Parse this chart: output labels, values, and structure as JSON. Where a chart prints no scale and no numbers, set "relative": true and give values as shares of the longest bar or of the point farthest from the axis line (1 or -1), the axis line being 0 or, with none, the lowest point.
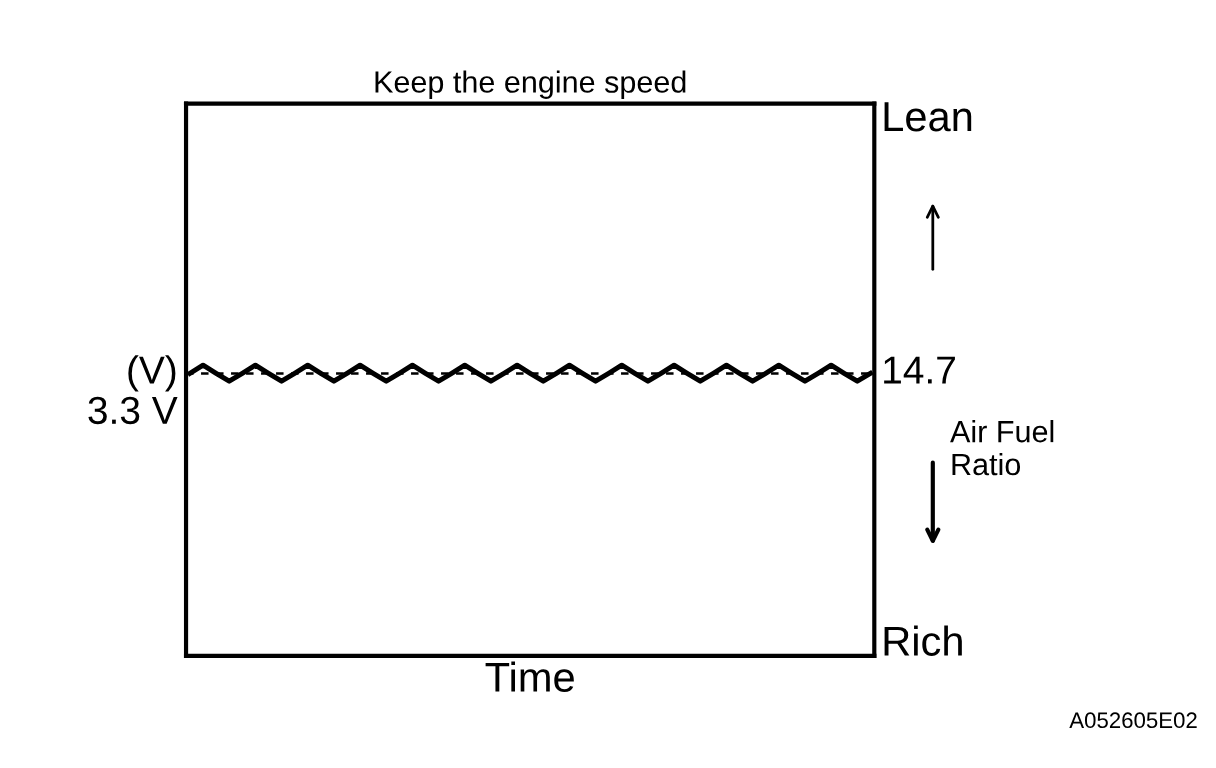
{
  "chart_data": {
    "type": "line",
    "relative": true,
    "title": "Keep the engine speed",
    "xlabel": "Time",
    "ylabel": "(V)",
    "categories": [
      null,
      null,
      null,
      null,
      null,
      null,
      null,
      null,
      null,
      null,
      null,
      null,
      null,
      null,
      null,
      null,
      null,
      null,
      null,
      null,
      null,
      null,
      null,
      null,
      null,
      null,
      null,
      null,
      null,
      null,
      null,
      null,
      null,
      null,
      null,
      null,
      null,
      null,
      null,
      null,
      null,
      null,
      null,
      null,
      null,
      null,
      null,
      null,
      null,
      null,
      null,
      null,
      null
    ],
    "series": [
      {
        "color": "#000000",
        "values": [
          0.972,
          1.0,
          0.972,
          0.945,
          0.972,
          1.0,
          0.972,
          0.945,
          0.972,
          1.0,
          0.972,
          0.945,
          0.972,
          1.0,
          0.972,
          0.945,
          0.972,
          1.0,
          0.972,
          0.945,
          0.972,
          1.0,
          0.972,
          0.945,
          0.972,
          1.0,
          0.972,
          0.945,
          0.972,
          1.0,
          0.972,
          0.945,
          0.972,
          1.0,
          0.972,
          0.945,
          0.972,
          1.0,
          0.972,
          0.945,
          0.972,
          1.0,
          0.972,
          0.945,
          0.972,
          1.0,
          0.972,
          0.945,
          0.972,
          1.0,
          0.972,
          0.945,
          0.972
        ]
      }
    ],
    "ref_lines": [
      {
        "axis": "y",
        "value": 0.972,
        "label": "3.3 V",
        "color": "#000000",
        "line_style": "dashed"
      }
    ],
    "annotations": [
      "14.7",
      "Lean",
      "Air Fuel\nRatio",
      "Rich",
      "A052605E02"
    ],
    "marker": "none",
    "line_style": "solid"
  }
}
